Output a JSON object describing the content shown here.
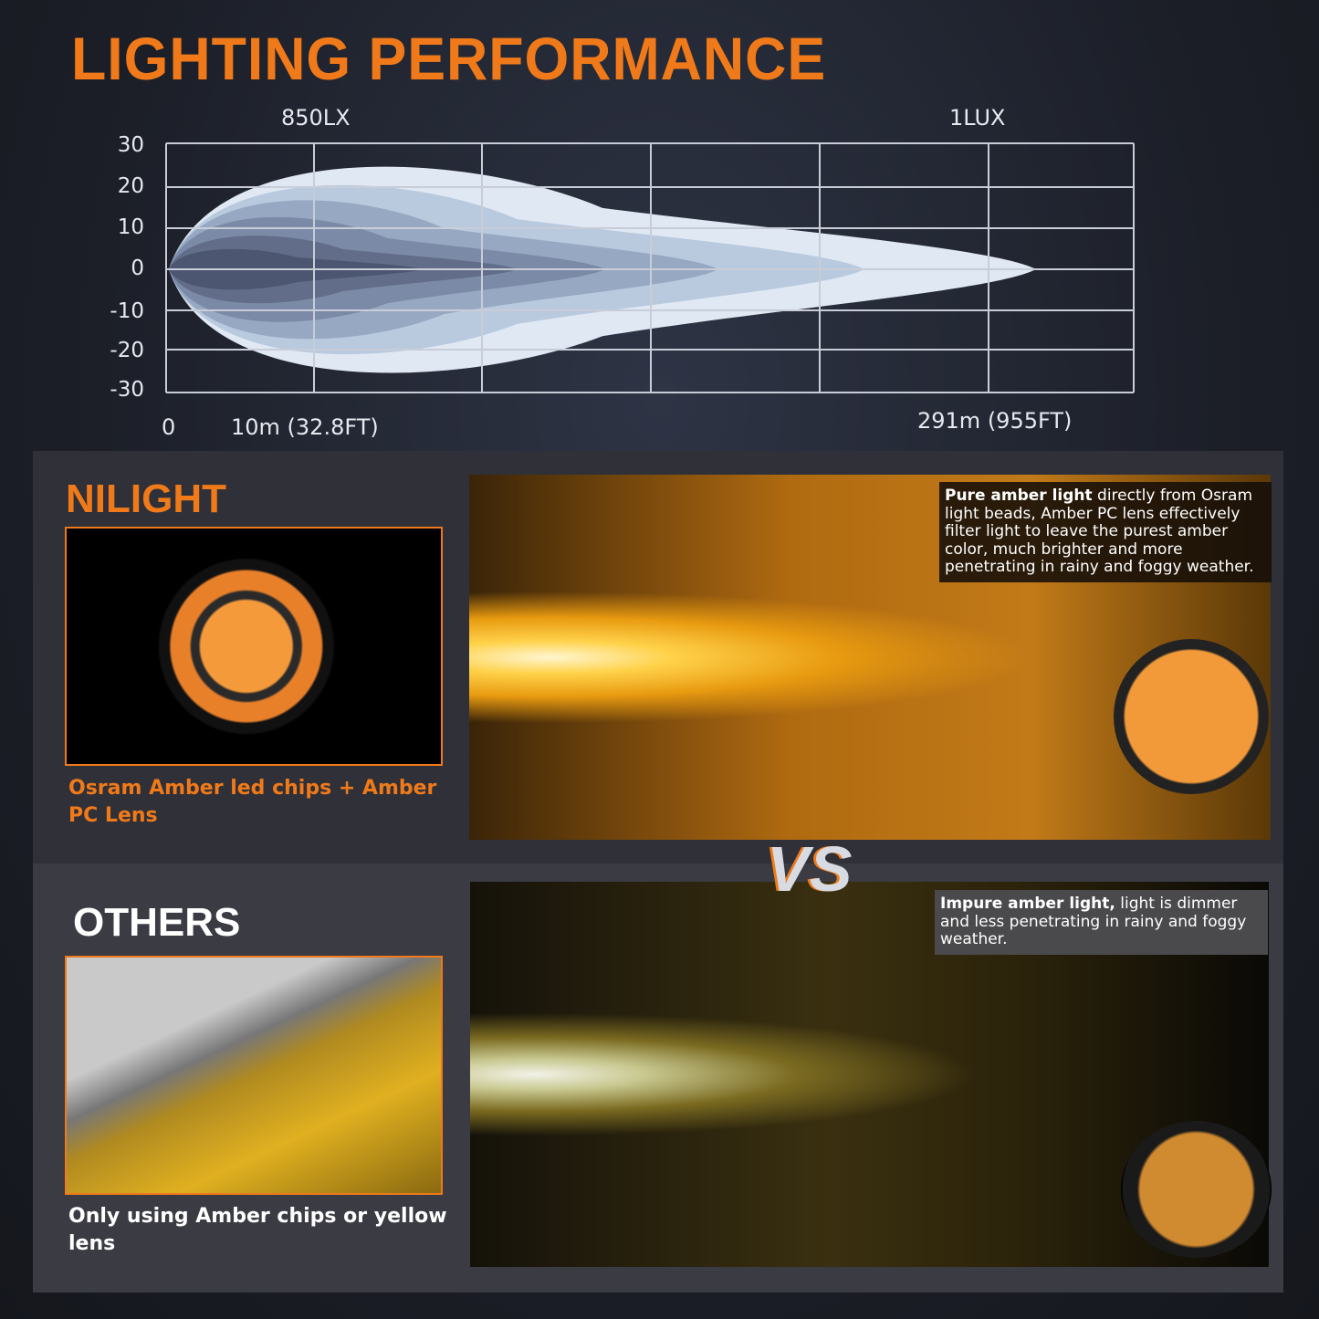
{
  "title": "LIGHTING PERFORMANCE",
  "chart": {
    "top_labels": [
      "850LX",
      "1LUX"
    ],
    "y_ticks": [
      "30",
      "20",
      "10",
      "0",
      "-10",
      "-20",
      "-30"
    ],
    "x_labels": [
      "0",
      "10m (32.8FT)",
      "291m (955FT)"
    ],
    "beam_colors": [
      "#dfe8f3",
      "#b9c9de",
      "#96a8c2",
      "#7b8aa6",
      "#626e89",
      "#4c5670"
    ]
  },
  "nilight": {
    "heading": "NILIGHT",
    "caption": "Osram Amber led chips + Amber PC Lens",
    "note_bold": "Pure amber light",
    "note_text": " directly from Osram light beads, Amber PC lens effectively filter light to leave the purest amber color, much brighter and more penetrating in rainy and foggy weather."
  },
  "vs": "VS",
  "others": {
    "heading": "OTHERS",
    "caption": "Only using Amber chips or yellow lens",
    "note_bold": "Impure amber light,",
    "note_text": " light is dimmer and less penetrating in rainy and foggy weather."
  },
  "colors": {
    "accent": "#f07a1a",
    "panel": "#2f3038"
  }
}
